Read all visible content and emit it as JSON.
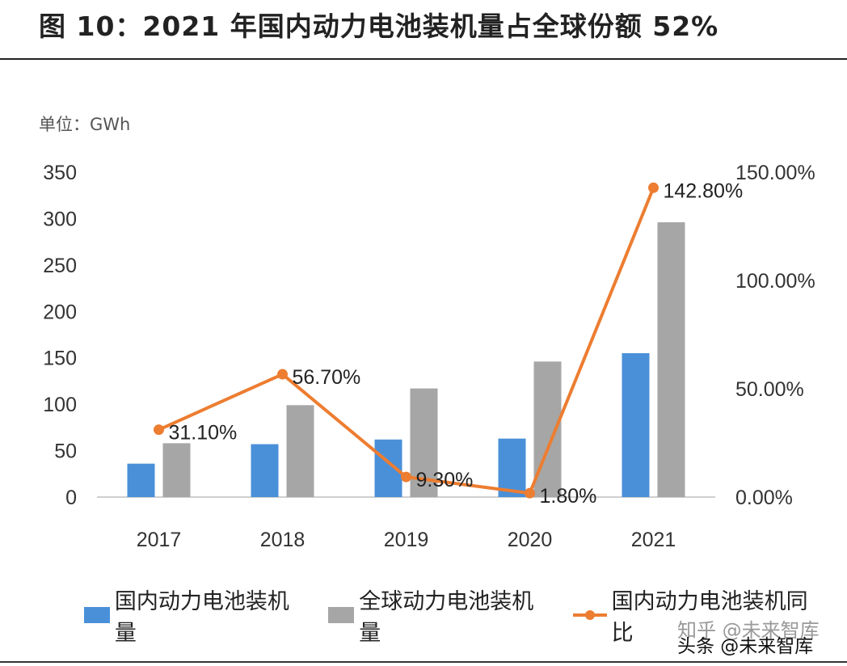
{
  "title": "图 10：2021 年国内动力电池装机量占全球份额 52%",
  "unit_label": "单位：GWh",
  "watermark": "知乎 @未来智库",
  "source": "头条 @未来智库",
  "colors": {
    "domestic": "#4a90d9",
    "global": "#a6a6a6",
    "yoy": "#ed7d31"
  },
  "chart_data": {
    "type": "bar",
    "categories": [
      "2017",
      "2018",
      "2019",
      "2020",
      "2021"
    ],
    "series": [
      {
        "name": "国内动力电池装机量",
        "type": "bar",
        "axis": "left",
        "values": [
          36,
          57,
          62,
          63,
          155
        ]
      },
      {
        "name": "全球动力电池装机量",
        "type": "bar",
        "axis": "left",
        "values": [
          58,
          99,
          117,
          146,
          296
        ]
      },
      {
        "name": "国内动力电池装机同比",
        "type": "line",
        "axis": "right",
        "values": [
          31.1,
          56.7,
          9.3,
          1.8,
          142.8
        ],
        "labels": [
          "31.10%",
          "56.70%",
          "9.30%",
          "1.80%",
          "142.80%"
        ]
      }
    ],
    "y_left": {
      "min": 0,
      "max": 350,
      "ticks": [
        "0",
        "50",
        "100",
        "150",
        "200",
        "250",
        "300",
        "350"
      ]
    },
    "y_right": {
      "min": 0,
      "max": 150,
      "ticks": [
        "0.00%",
        "50.00%",
        "100.00%",
        "150.00%"
      ]
    },
    "legend_position": "bottom",
    "grid": false
  }
}
